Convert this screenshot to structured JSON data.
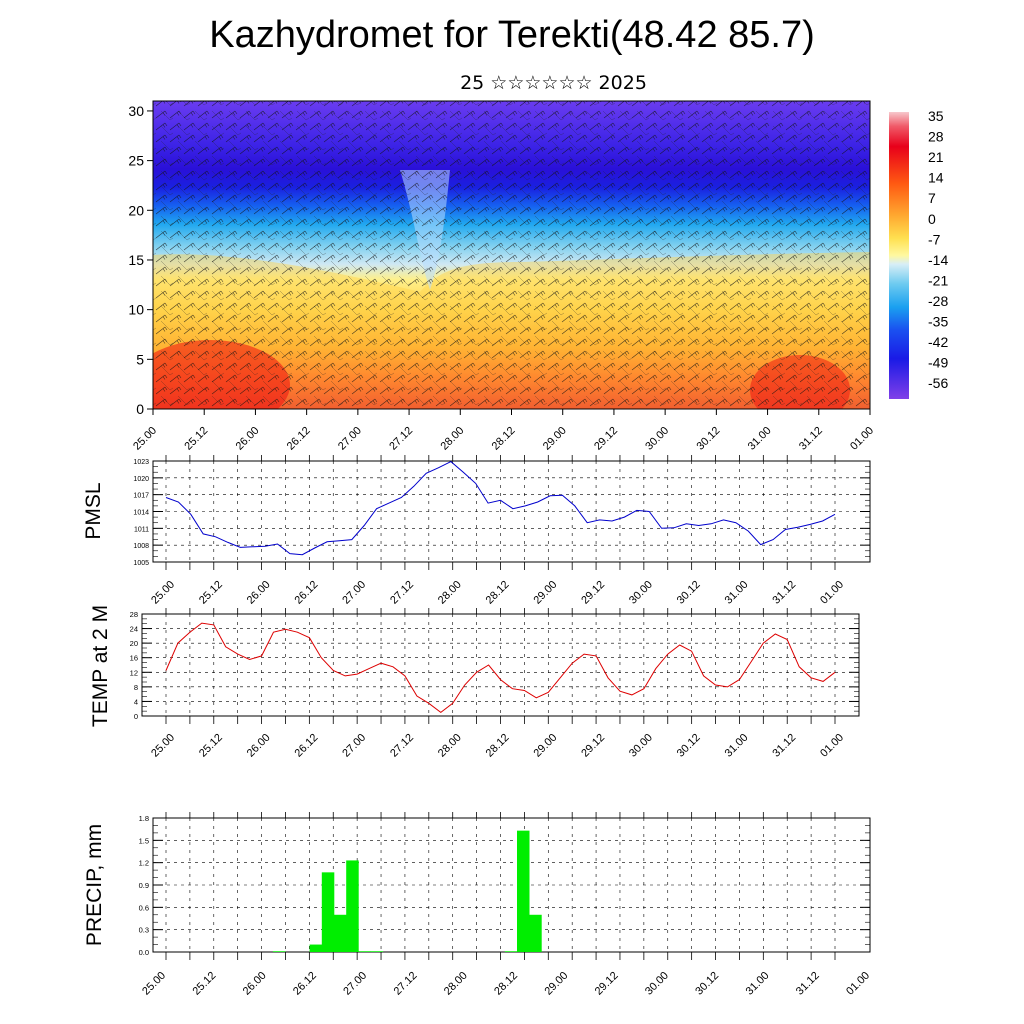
{
  "page": {
    "title": "Kazhydromet for Terekti(48.42 85.7)",
    "subtitle": "25 ☆☆☆☆☆☆ 2025"
  },
  "colors": {
    "pmsl_line": "#0000cc",
    "temp_line": "#dd0000",
    "precip_bar": "#00ee00",
    "grid": "#000000"
  },
  "time_ticks": [
    "25.00",
    "25.12",
    "26.00",
    "26.12",
    "27.00",
    "27.12",
    "28.00",
    "28.12",
    "29.00",
    "29.12",
    "30.00",
    "30.12",
    "31.00",
    "31.12",
    "01.00"
  ],
  "chart_data": [
    {
      "id": "cross-section",
      "type": "heatmap",
      "title": "",
      "y_ticks": [
        "0",
        "5",
        "10",
        "15",
        "20",
        "25",
        "30"
      ],
      "ylim": [
        0,
        31
      ],
      "x_ticks": [
        "25.00",
        "25.12",
        "26.00",
        "26.12",
        "27.00",
        "27.12",
        "28.00",
        "28.12",
        "29.00",
        "29.12",
        "30.00",
        "30.12",
        "31.00",
        "31.12",
        "01.00"
      ],
      "colorbar_labels": [
        "35",
        "28",
        "21",
        "14",
        "7",
        "0",
        "-7",
        "-14",
        "-21",
        "-28",
        "-35",
        "-42",
        "-49",
        "-56"
      ],
      "overlay": "wind barbs",
      "colormap_range": [
        -60,
        38
      ]
    },
    {
      "id": "pmsl",
      "type": "line",
      "ylabel": "PMSL",
      "ylim": [
        1005,
        1023
      ],
      "y_ticks": [
        "1005",
        "1008",
        "1011",
        "1014",
        "1017",
        "1020",
        "1023"
      ],
      "x_ticks": [
        "25.00",
        "25.12",
        "26.00",
        "26.12",
        "27.00",
        "27.12",
        "28.00",
        "28.12",
        "29.00",
        "29.12",
        "30.00",
        "30.12",
        "31.00",
        "31.12",
        "01.00"
      ],
      "x_step_hours": 3,
      "values": [
        1016.5,
        1015.7,
        1013.5,
        1010.0,
        1009.5,
        1008.5,
        1007.6,
        1007.7,
        1007.8,
        1008.2,
        1006.5,
        1006.3,
        1007.5,
        1008.6,
        1008.8,
        1009.0,
        1011.5,
        1014.5,
        1015.5,
        1016.5,
        1018.5,
        1020.8,
        1021.8,
        1022.9,
        1021.0,
        1019.0,
        1015.5,
        1016.0,
        1014.5,
        1015.0,
        1015.7,
        1016.8,
        1016.9,
        1015.0,
        1012.0,
        1012.5,
        1012.3,
        1013.0,
        1014.2,
        1014.0,
        1011.0,
        1011.1,
        1011.8,
        1011.5,
        1011.8,
        1012.5,
        1012.0,
        1010.5,
        1008.1,
        1009.0,
        1010.8,
        1011.2,
        1011.7,
        1012.3,
        1013.5
      ]
    },
    {
      "id": "temp",
      "type": "line",
      "ylabel": "TEMP at 2 M",
      "ylim": [
        0,
        28
      ],
      "y_ticks": [
        "0",
        "4",
        "8",
        "12",
        "16",
        "20",
        "24",
        "28"
      ],
      "x_ticks": [
        "25.00",
        "25.12",
        "26.00",
        "26.12",
        "27.00",
        "27.12",
        "28.00",
        "28.12",
        "29.00",
        "29.12",
        "30.00",
        "30.12",
        "31.00",
        "31.12",
        "01.00"
      ],
      "x_step_hours": 3,
      "values": [
        12.5,
        20.0,
        23.0,
        25.5,
        25.0,
        19.0,
        17.0,
        15.5,
        16.5,
        23.0,
        23.8,
        23.0,
        21.5,
        16.0,
        12.5,
        11.0,
        11.5,
        13.0,
        14.5,
        13.5,
        11.0,
        5.5,
        3.5,
        1.0,
        3.5,
        8.5,
        12.0,
        14.0,
        10.0,
        7.5,
        7.0,
        5.0,
        6.5,
        10.5,
        14.5,
        17.0,
        16.5,
        10.5,
        6.8,
        5.8,
        7.5,
        13.0,
        17.0,
        19.5,
        17.8,
        11.0,
        8.5,
        8.0,
        10.0,
        15.0,
        20.0,
        22.5,
        21.0,
        13.5,
        10.5,
        9.5,
        12.0
      ]
    },
    {
      "id": "precip",
      "type": "bar",
      "ylabel": "PRECIP, mm",
      "ylim": [
        0,
        1.8
      ],
      "y_ticks": [
        "0.0",
        "0.3",
        "0.6",
        "0.9",
        "1.2",
        "1.5",
        "1.8"
      ],
      "x_ticks": [
        "25.00",
        "25.12",
        "26.00",
        "26.12",
        "27.00",
        "27.12",
        "28.00",
        "28.12",
        "29.00",
        "29.12",
        "30.00",
        "30.12",
        "31.00",
        "31.12",
        "01.00"
      ],
      "x_step_hours": 3,
      "values": [
        0,
        0,
        0,
        0,
        0,
        0,
        0,
        0,
        0,
        0,
        0.01,
        0,
        0,
        0.1,
        1.07,
        0.5,
        1.23,
        0.01,
        0.01,
        0,
        0,
        0,
        0,
        0,
        0,
        0,
        0,
        0,
        0,
        0.01,
        1.63,
        0.5,
        0,
        0,
        0,
        0,
        0,
        0,
        0,
        0,
        0,
        0,
        0,
        0,
        0,
        0,
        0,
        0,
        0,
        0,
        0,
        0,
        0,
        0,
        0,
        0,
        0
      ]
    }
  ]
}
